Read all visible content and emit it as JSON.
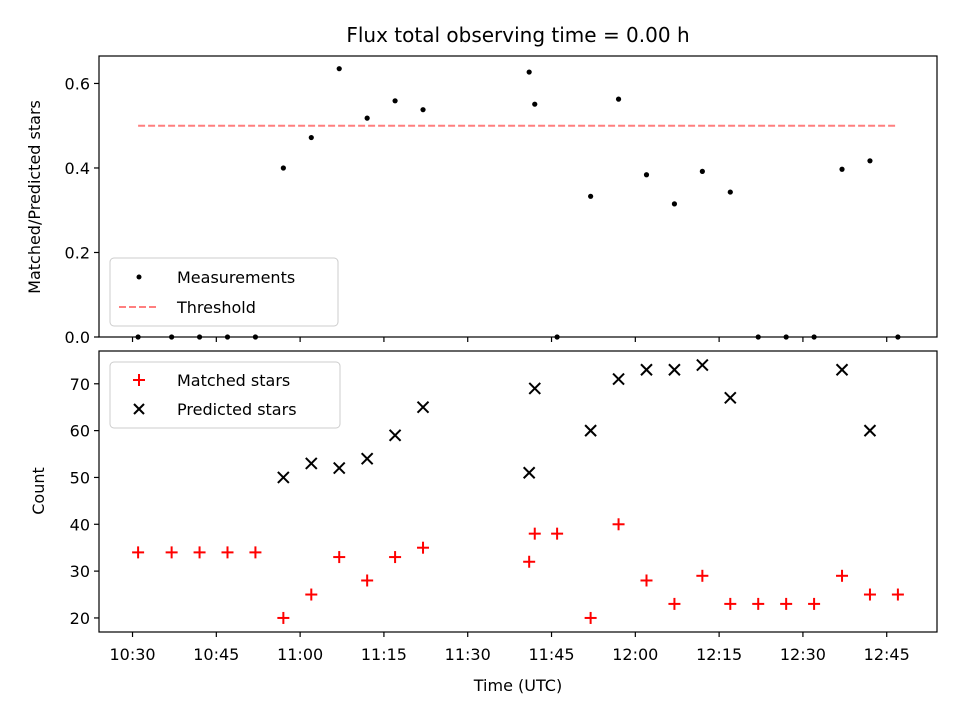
{
  "chart_data": [
    {
      "type": "scatter",
      "title": "Flux total observing time = 0.00 h",
      "xlabel": "",
      "ylabel": "Matched/Predicted stars",
      "ylim": [
        0,
        0.665
      ],
      "xlim": [
        "10:24",
        "12:54"
      ],
      "yticks": [
        "0.0",
        "0.2",
        "0.4",
        "0.6"
      ],
      "grid": false,
      "legend_position": "lower left",
      "series": [
        {
          "name": "Measurements",
          "marker": "dot",
          "color": "#000000",
          "x": [
            "10:31",
            "10:37",
            "10:42",
            "10:47",
            "10:52",
            "10:57",
            "11:02",
            "11:07",
            "11:12",
            "11:17",
            "11:22",
            "11:41",
            "11:42",
            "11:46",
            "11:52",
            "11:57",
            "12:02",
            "12:07",
            "12:12",
            "12:17",
            "12:22",
            "12:27",
            "12:32",
            "12:37",
            "12:42",
            "12:47"
          ],
          "y": [
            0.0,
            0.0,
            0.0,
            0.0,
            0.0,
            0.4,
            0.472,
            0.635,
            0.518,
            0.559,
            0.538,
            0.627,
            0.551,
            0.0,
            0.333,
            0.563,
            0.384,
            0.315,
            0.392,
            0.343,
            0.0,
            0.0,
            0.0,
            0.397,
            0.417,
            0.0
          ]
        },
        {
          "name": "Threshold",
          "style": "dashed",
          "color": "#ff7f7f",
          "x": [
            "10:31",
            "12:47"
          ],
          "y": [
            0.5,
            0.5
          ]
        }
      ]
    },
    {
      "type": "scatter",
      "title": "",
      "xlabel": "Time (UTC)",
      "ylabel": "Count",
      "ylim": [
        17,
        77
      ],
      "xlim": [
        "10:24",
        "12:54"
      ],
      "yticks": [
        "20",
        "30",
        "40",
        "50",
        "60",
        "70"
      ],
      "xticks": [
        "10:30",
        "10:45",
        "11:00",
        "11:15",
        "11:30",
        "11:45",
        "12:00",
        "12:15",
        "12:30",
        "12:45"
      ],
      "grid": false,
      "legend_position": "upper left",
      "series": [
        {
          "name": "Matched stars",
          "marker": "plus",
          "color": "#ff0000",
          "x": [
            "10:31",
            "10:37",
            "10:42",
            "10:47",
            "10:52",
            "10:57",
            "11:02",
            "11:07",
            "11:12",
            "11:17",
            "11:22",
            "11:41",
            "11:42",
            "11:46",
            "11:52",
            "11:57",
            "12:02",
            "12:07",
            "12:12",
            "12:17",
            "12:22",
            "12:27",
            "12:32",
            "12:37",
            "12:42",
            "12:47"
          ],
          "y": [
            34,
            34,
            34,
            34,
            34,
            20,
            25,
            33,
            28,
            33,
            35,
            32,
            38,
            38,
            20,
            40,
            28,
            23,
            29,
            23,
            23,
            23,
            23,
            29,
            25,
            25
          ]
        },
        {
          "name": "Predicted stars",
          "marker": "x",
          "color": "#000000",
          "x": [
            "10:57",
            "11:02",
            "11:07",
            "11:12",
            "11:17",
            "11:22",
            "11:41",
            "11:42",
            "11:52",
            "11:57",
            "12:02",
            "12:07",
            "12:12",
            "12:17",
            "12:37",
            "12:42"
          ],
          "y": [
            50,
            53,
            52,
            54,
            59,
            65,
            51,
            69,
            60,
            71,
            73,
            73,
            74,
            67,
            73,
            60
          ]
        }
      ]
    }
  ]
}
